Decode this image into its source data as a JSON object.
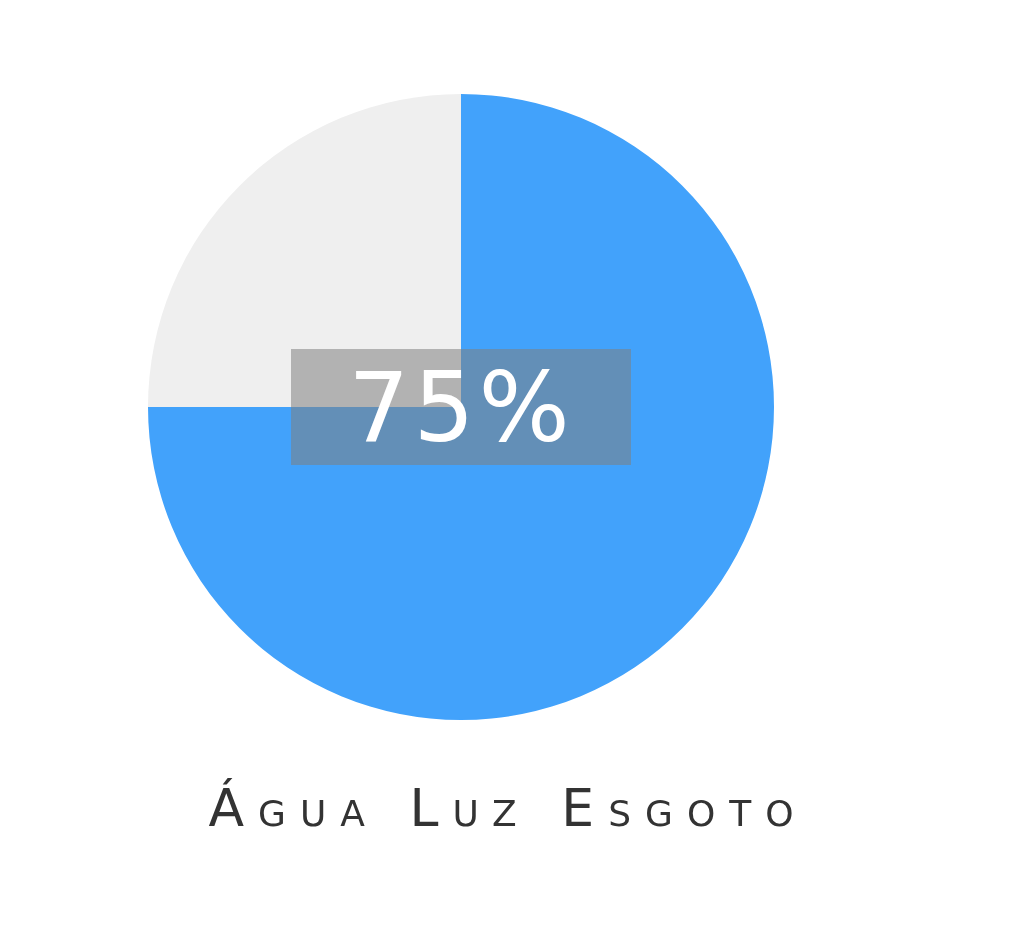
{
  "chart_data": {
    "type": "pie",
    "title": "Água Luz Esgoto",
    "categories": [
      null,
      null
    ],
    "values": [
      75,
      25
    ],
    "colors": [
      "#42a2fb",
      "#efefef"
    ],
    "value_labels": [
      "75%",
      null
    ]
  }
}
